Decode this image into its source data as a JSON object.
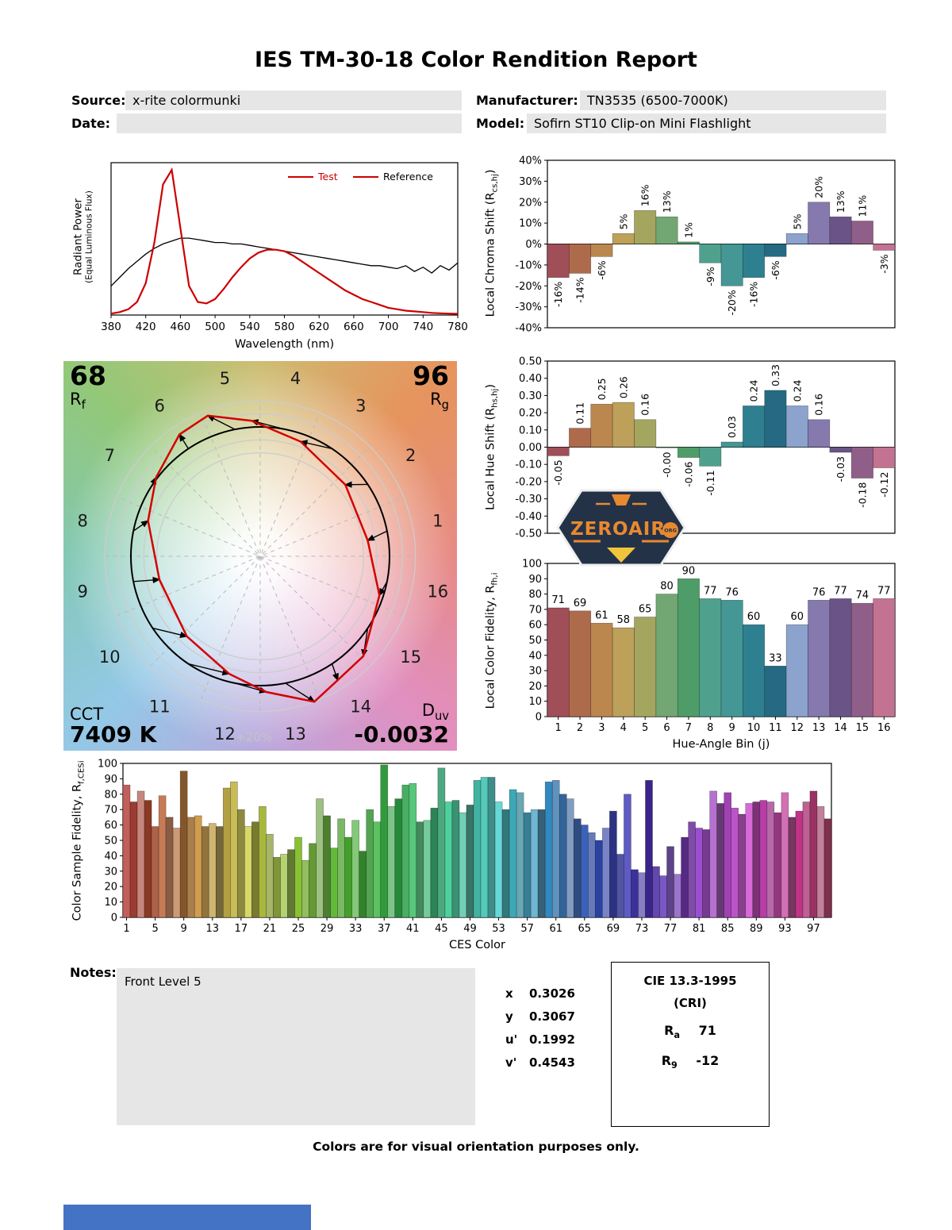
{
  "title": "IES TM-30-18 Color Rendition Report",
  "header": {
    "source_label": "Source:",
    "source": "x-rite colormunki",
    "date_label": "Date:",
    "date": "",
    "manufacturer_label": "Manufacturer:",
    "manufacturer": "TN3535 (6500-7000K)",
    "model_label": "Model:",
    "model": "Sofirn ST10 Clip-on Mini Flashlight"
  },
  "notes": {
    "label": "Notes:",
    "text": "Front Level 5"
  },
  "chromaticity": {
    "rows": [
      {
        "label": "x",
        "value": "0.3026"
      },
      {
        "label": "y",
        "value": "0.3067"
      },
      {
        "label": "u'",
        "value": "0.1992"
      },
      {
        "label": "v'",
        "value": "0.4543"
      }
    ]
  },
  "cie": {
    "title": "CIE 13.3-1995",
    "subtitle": "(CRI)",
    "rows": [
      {
        "base": "R",
        "sub": "a",
        "value": "71"
      },
      {
        "base": "R",
        "sub": "9",
        "value": "-12"
      }
    ]
  },
  "cvg": {
    "rf": {
      "value": "68",
      "base": "R",
      "sub": "f"
    },
    "rg": {
      "value": "96",
      "base": "R",
      "sub": "g"
    },
    "cct": {
      "label": "CCT",
      "value": "7409 K"
    },
    "duv": {
      "base": "D",
      "sub": "uv",
      "value": "-0.0032"
    },
    "bin_labels": [
      "1",
      "2",
      "3",
      "4",
      "5",
      "6",
      "7",
      "8",
      "9",
      "10",
      "11",
      "12",
      "13",
      "14",
      "15",
      "16"
    ],
    "plus_label": "+20%",
    "test_color": "#d40000",
    "reference_color": "#000000"
  },
  "brand": {
    "name": "ZEROAIR",
    "suffix": "ORG",
    "bg": "#243248",
    "accent": "#e8892f",
    "accent2": "#f2c43c"
  },
  "footer": {
    "note": "Colors are for visual orientation purposes only."
  },
  "bin_colors": [
    "#a04e58",
    "#ae6b4c",
    "#bb874e",
    "#bda05a",
    "#a4a660",
    "#72a673",
    "#4e9d68",
    "#4fa18d",
    "#449794",
    "#2e8090",
    "#256a82",
    "#8ba3cd",
    "#8579ae",
    "#6a5487",
    "#905f89",
    "#c37391"
  ],
  "chart_data": [
    {
      "id": "spd",
      "type": "line",
      "xlabel": "Wavelength (nm)",
      "ylabel_line1": "Radiant Power",
      "ylabel_line2": "(Equal Luminous Flux)",
      "xlim": [
        380,
        780
      ],
      "ylim": [
        0,
        1.05
      ],
      "xticks": [
        380,
        420,
        460,
        500,
        540,
        580,
        620,
        660,
        700,
        740,
        780
      ],
      "x": [
        380,
        390,
        400,
        410,
        420,
        430,
        440,
        450,
        460,
        470,
        480,
        490,
        500,
        510,
        520,
        530,
        540,
        550,
        560,
        570,
        580,
        590,
        600,
        610,
        620,
        630,
        640,
        650,
        660,
        670,
        680,
        690,
        700,
        710,
        720,
        730,
        740,
        750,
        760,
        770,
        780
      ],
      "series": [
        {
          "name": "Test",
          "color": "#cc0000",
          "width": 2.2,
          "text_color": "#cc0000",
          "legend_line_color": "#cc0000",
          "y": [
            0.01,
            0.02,
            0.04,
            0.09,
            0.22,
            0.5,
            0.9,
            1.0,
            0.6,
            0.2,
            0.09,
            0.08,
            0.11,
            0.18,
            0.26,
            0.33,
            0.39,
            0.43,
            0.45,
            0.45,
            0.44,
            0.41,
            0.37,
            0.33,
            0.29,
            0.25,
            0.21,
            0.17,
            0.14,
            0.11,
            0.09,
            0.07,
            0.05,
            0.04,
            0.03,
            0.025,
            0.02,
            0.015,
            0.012,
            0.01,
            0.008
          ]
        },
        {
          "name": "Reference",
          "color": "#000000",
          "width": 1.3,
          "text_color": "#000000",
          "legend_line_color": "#cc0000",
          "y": [
            0.2,
            0.26,
            0.32,
            0.37,
            0.42,
            0.46,
            0.49,
            0.51,
            0.53,
            0.53,
            0.52,
            0.51,
            0.5,
            0.5,
            0.49,
            0.49,
            0.48,
            0.47,
            0.46,
            0.45,
            0.44,
            0.43,
            0.42,
            0.41,
            0.4,
            0.39,
            0.38,
            0.37,
            0.36,
            0.35,
            0.34,
            0.34,
            0.33,
            0.32,
            0.34,
            0.3,
            0.33,
            0.29,
            0.34,
            0.31,
            0.36
          ]
        }
      ]
    },
    {
      "id": "chroma_shift",
      "type": "bar",
      "ylabel_parts": {
        "pre": "Local Chroma Shift (R",
        "sub": "cs,hj",
        "post": ")"
      },
      "ylim": [
        -40,
        40
      ],
      "yticks": [
        -40,
        -30,
        -20,
        -10,
        0,
        10,
        20,
        30,
        40
      ],
      "categories": [
        1,
        2,
        3,
        4,
        5,
        6,
        7,
        8,
        9,
        10,
        11,
        12,
        13,
        14,
        15,
        16
      ],
      "values": [
        -16,
        -14,
        -6,
        5,
        16,
        13,
        1,
        -9,
        -20,
        -16,
        -6,
        5,
        20,
        13,
        11,
        -3
      ],
      "value_labels": [
        "-16%",
        "-14%",
        "-6%",
        "5%",
        "16%",
        "13%",
        "1%",
        "-9%",
        "-20%",
        "-16%",
        "-6%",
        "5%",
        "20%",
        "13%",
        "11%",
        "-3%"
      ]
    },
    {
      "id": "hue_shift",
      "type": "bar",
      "ylabel_parts": {
        "pre": "Local Hue Shift (R",
        "sub": "hs,hj",
        "post": ")"
      },
      "ylim": [
        -0.5,
        0.5
      ],
      "yticks": [
        -0.5,
        -0.4,
        -0.3,
        -0.2,
        -0.1,
        0,
        0.1,
        0.2,
        0.3,
        0.4,
        0.5
      ],
      "categories": [
        1,
        2,
        3,
        4,
        5,
        6,
        7,
        8,
        9,
        10,
        11,
        12,
        13,
        14,
        15,
        16
      ],
      "values": [
        -0.05,
        0.11,
        0.25,
        0.26,
        0.16,
        -0.004,
        -0.06,
        -0.11,
        0.03,
        0.24,
        0.33,
        0.24,
        0.16,
        -0.03,
        -0.18,
        -0.12
      ],
      "value_labels": [
        "-0.05",
        "0.11",
        "0.25",
        "0.26",
        "0.16",
        "-0.00",
        "-0.06",
        "-0.11",
        "0.03",
        "0.24",
        "0.33",
        "0.24",
        "0.16",
        "-0.03",
        "-0.18",
        "-0.12"
      ]
    },
    {
      "id": "local_fidelity",
      "type": "bar",
      "ylabel_parts": {
        "pre": "Local Color Fidelity, R",
        "sub": "fh,i",
        "post": ""
      },
      "xlabel": "Hue-Angle Bin (j)",
      "ylim": [
        0,
        100
      ],
      "yticks": [
        0,
        10,
        20,
        30,
        40,
        50,
        60,
        70,
        80,
        90,
        100
      ],
      "categories": [
        1,
        2,
        3,
        4,
        5,
        6,
        7,
        8,
        9,
        10,
        11,
        12,
        13,
        14,
        15,
        16
      ],
      "values": [
        71,
        69,
        61,
        58,
        65,
        80,
        90,
        77,
        76,
        60,
        33,
        60,
        76,
        77,
        74,
        77
      ]
    },
    {
      "id": "ces_fidelity",
      "type": "bar",
      "ylabel_parts": {
        "pre": "Color Sample Fidelity, R",
        "sub": "f,CESi",
        "post": ""
      },
      "xlabel": "CES Color",
      "ylim": [
        0,
        100
      ],
      "yticks": [
        0,
        10,
        20,
        30,
        40,
        50,
        60,
        70,
        80,
        90,
        100
      ],
      "xticks": [
        1,
        5,
        9,
        13,
        17,
        21,
        25,
        29,
        33,
        37,
        41,
        45,
        49,
        53,
        57,
        61,
        65,
        69,
        73,
        77,
        81,
        85,
        89,
        93,
        97
      ],
      "values": [
        86,
        75,
        82,
        76,
        59,
        79,
        65,
        58,
        95,
        65,
        66,
        59,
        61,
        59,
        84,
        88,
        70,
        59,
        62,
        72,
        54,
        39,
        41,
        44,
        52,
        37,
        48,
        77,
        66,
        45,
        64,
        52,
        63,
        43,
        70,
        62,
        99,
        72,
        77,
        86,
        87,
        62,
        63,
        71,
        97,
        75,
        76,
        68,
        73,
        89,
        91,
        91,
        75,
        70,
        83,
        81,
        68,
        70,
        70,
        88,
        89,
        80,
        77,
        64,
        60,
        55,
        50,
        58,
        69,
        41,
        80,
        31,
        29,
        89,
        33,
        27,
        46,
        28,
        52,
        62,
        58,
        57,
        82,
        74,
        81,
        71,
        67,
        74,
        75,
        76,
        75,
        68,
        81,
        65,
        69,
        75,
        82,
        72,
        64
      ],
      "color_gen": {
        "hue_start": 2,
        "hue_end": 338,
        "sat_cycle": [
          46,
          52,
          38,
          58,
          42,
          50,
          34
        ],
        "light_cycle": [
          56,
          40,
          63,
          34,
          48
        ]
      }
    }
  ]
}
